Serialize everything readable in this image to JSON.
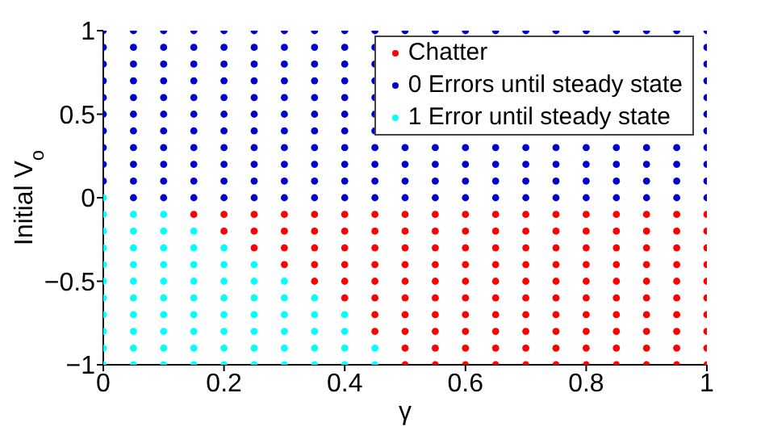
{
  "chart_data": {
    "type": "scatter",
    "xlabel": "γ",
    "ylabel": "Initial V$_{o}$",
    "xlim": [
      0,
      1
    ],
    "xticks": [
      0,
      0.2,
      0.4,
      0.6,
      0.8,
      1
    ],
    "ylim": [
      -1,
      1
    ],
    "yticks": [
      -1,
      -0.5,
      0,
      0.5,
      1
    ],
    "grid": false,
    "legend": "top right",
    "marker": "circle",
    "series": [
      {
        "name": "Chatter",
        "color": "#ff0000",
        "x": [
          0.15,
          0.2,
          0.25,
          0.3,
          0.35,
          0.4,
          0.45,
          0.5,
          0.55,
          0.6,
          0.65,
          0.7,
          0.75,
          0.8,
          0.85,
          0.9,
          0.95,
          1,
          0.2,
          0.25,
          0.3,
          0.35,
          0.4,
          0.45,
          0.5,
          0.55,
          0.6,
          0.65,
          0.7,
          0.75,
          0.8,
          0.85,
          0.9,
          0.95,
          1,
          0.25,
          0.3,
          0.35,
          0.4,
          0.45,
          0.5,
          0.55,
          0.6,
          0.65,
          0.7,
          0.75,
          0.8,
          0.85,
          0.9,
          0.95,
          1,
          0.3,
          0.35,
          0.4,
          0.45,
          0.5,
          0.55,
          0.6,
          0.65,
          0.7,
          0.75,
          0.8,
          0.85,
          0.9,
          0.95,
          1,
          0.35,
          0.4,
          0.45,
          0.5,
          0.55,
          0.6,
          0.65,
          0.7,
          0.75,
          0.8,
          0.85,
          0.9,
          0.95,
          1,
          0.4,
          0.45,
          0.5,
          0.55,
          0.6,
          0.65,
          0.7,
          0.75,
          0.8,
          0.85,
          0.9,
          0.95,
          1,
          0.45,
          0.5,
          0.55,
          0.6,
          0.65,
          0.7,
          0.75,
          0.8,
          0.85,
          0.9,
          0.95,
          1,
          0.45,
          0.5,
          0.55,
          0.6,
          0.65,
          0.7,
          0.75,
          0.8,
          0.85,
          0.9,
          0.95,
          1,
          0.5,
          0.55,
          0.6,
          0.65,
          0.7,
          0.75,
          0.8,
          0.85,
          0.9,
          0.95,
          1,
          0.5,
          0.55,
          0.6,
          0.65,
          0.7,
          0.75,
          0.8,
          0.85,
          0.9,
          0.95,
          1
        ],
        "values": [
          -0.1,
          -0.1,
          -0.1,
          -0.1,
          -0.1,
          -0.1,
          -0.1,
          -0.1,
          -0.1,
          -0.1,
          -0.1,
          -0.1,
          -0.1,
          -0.1,
          -0.1,
          -0.1,
          -0.1,
          -0.1,
          -0.2,
          -0.2,
          -0.2,
          -0.2,
          -0.2,
          -0.2,
          -0.2,
          -0.2,
          -0.2,
          -0.2,
          -0.2,
          -0.2,
          -0.2,
          -0.2,
          -0.2,
          -0.2,
          -0.2,
          -0.3,
          -0.3,
          -0.3,
          -0.3,
          -0.3,
          -0.3,
          -0.3,
          -0.3,
          -0.3,
          -0.3,
          -0.3,
          -0.3,
          -0.3,
          -0.3,
          -0.3,
          -0.3,
          -0.4,
          -0.4,
          -0.4,
          -0.4,
          -0.4,
          -0.4,
          -0.4,
          -0.4,
          -0.4,
          -0.4,
          -0.4,
          -0.4,
          -0.4,
          -0.4,
          -0.4,
          -0.5,
          -0.5,
          -0.5,
          -0.5,
          -0.5,
          -0.5,
          -0.5,
          -0.5,
          -0.5,
          -0.5,
          -0.5,
          -0.5,
          -0.5,
          -0.5,
          -0.6,
          -0.6,
          -0.6,
          -0.6,
          -0.6,
          -0.6,
          -0.6,
          -0.6,
          -0.6,
          -0.6,
          -0.6,
          -0.6,
          -0.6,
          -0.7,
          -0.7,
          -0.7,
          -0.7,
          -0.7,
          -0.7,
          -0.7,
          -0.7,
          -0.7,
          -0.7,
          -0.7,
          -0.7,
          -0.8,
          -0.8,
          -0.8,
          -0.8,
          -0.8,
          -0.8,
          -0.8,
          -0.8,
          -0.8,
          -0.8,
          -0.8,
          -0.8,
          -0.9,
          -0.9,
          -0.9,
          -0.9,
          -0.9,
          -0.9,
          -0.9,
          -0.9,
          -0.9,
          -0.9,
          -0.9,
          -1,
          -1,
          -1,
          -1,
          -1,
          -1,
          -1,
          -1,
          -1,
          -1,
          -1
        ]
      },
      {
        "name": "0 Errors until steady state",
        "color": "#0000cc",
        "x": [
          0.05,
          0.1,
          0.15,
          0.2,
          0.25,
          0.3,
          0.35,
          0.4,
          0.45,
          0.5,
          0.55,
          0.6,
          0.65,
          0.7,
          0.75,
          0.8,
          0.85,
          0.9,
          0.95,
          1,
          0,
          0.05,
          0.1,
          0.15,
          0.2,
          0.25,
          0.3,
          0.35,
          0.4,
          0.45,
          0.5,
          0.55,
          0.6,
          0.65,
          0.7,
          0.75,
          0.8,
          0.85,
          0.9,
          0.95,
          1,
          0,
          0.05,
          0.1,
          0.15,
          0.2,
          0.25,
          0.3,
          0.35,
          0.4,
          0.45,
          0.5,
          0.55,
          0.6,
          0.65,
          0.7,
          0.75,
          0.8,
          0.85,
          0.9,
          0.95,
          1,
          0,
          0.05,
          0.1,
          0.15,
          0.2,
          0.25,
          0.3,
          0.35,
          0.4,
          0.45,
          0.5,
          0.55,
          0.6,
          0.65,
          0.7,
          0.75,
          0.8,
          0.85,
          0.9,
          0.95,
          1,
          0,
          0.05,
          0.1,
          0.15,
          0.2,
          0.25,
          0.3,
          0.35,
          0.4,
          0.45,
          0.5,
          0.55,
          0.6,
          0.65,
          0.7,
          0.75,
          0.8,
          0.85,
          0.9,
          0.95,
          1,
          0,
          0.05,
          0.1,
          0.15,
          0.2,
          0.25,
          0.3,
          0.35,
          0.4,
          0.45,
          0.5,
          0.55,
          0.6,
          0.65,
          0.7,
          0.75,
          0.8,
          0.85,
          0.9,
          0.95,
          1,
          0,
          0.05,
          0.1,
          0.15,
          0.2,
          0.25,
          0.3,
          0.35,
          0.4,
          0.45,
          0.5,
          0.55,
          0.6,
          0.65,
          0.7,
          0.75,
          0.8,
          0.85,
          0.9,
          0.95,
          1,
          0,
          0.05,
          0.1,
          0.15,
          0.2,
          0.25,
          0.3,
          0.35,
          0.4,
          0.45,
          0.5,
          0.55,
          0.6,
          0.65,
          0.7,
          0.75,
          0.8,
          0.85,
          0.9,
          0.95,
          1,
          0,
          0.05,
          0.1,
          0.15,
          0.2,
          0.25,
          0.3,
          0.35,
          0.4,
          0.45,
          0.5,
          0.55,
          0.6,
          0.65,
          0.7,
          0.75,
          0.8,
          0.85,
          0.9,
          0.95,
          1,
          0,
          0.05,
          0.1,
          0.15,
          0.2,
          0.25,
          0.3,
          0.35,
          0.4,
          0.45,
          0.5,
          0.55,
          0.6,
          0.65,
          0.7,
          0.75,
          0.8,
          0.85,
          0.9,
          0.95,
          1,
          0,
          0.05,
          0.1,
          0.15,
          0.2,
          0.25,
          0.3,
          0.35,
          0.4,
          0.45,
          0.5,
          0.55,
          0.6,
          0.65,
          0.7,
          0.75,
          0.8,
          0.85,
          0.9,
          0.95,
          1
        ],
        "values": [
          0,
          0,
          0,
          0,
          0,
          0,
          0,
          0,
          0,
          0,
          0,
          0,
          0,
          0,
          0,
          0,
          0,
          0,
          0,
          0,
          0.1,
          0.1,
          0.1,
          0.1,
          0.1,
          0.1,
          0.1,
          0.1,
          0.1,
          0.1,
          0.1,
          0.1,
          0.1,
          0.1,
          0.1,
          0.1,
          0.1,
          0.1,
          0.1,
          0.1,
          0.1,
          0.2,
          0.2,
          0.2,
          0.2,
          0.2,
          0.2,
          0.2,
          0.2,
          0.2,
          0.2,
          0.2,
          0.2,
          0.2,
          0.2,
          0.2,
          0.2,
          0.2,
          0.2,
          0.2,
          0.2,
          0.2,
          0.3,
          0.3,
          0.3,
          0.3,
          0.3,
          0.3,
          0.3,
          0.3,
          0.3,
          0.3,
          0.3,
          0.3,
          0.3,
          0.3,
          0.3,
          0.3,
          0.3,
          0.3,
          0.3,
          0.3,
          0.3,
          0.4,
          0.4,
          0.4,
          0.4,
          0.4,
          0.4,
          0.4,
          0.4,
          0.4,
          0.4,
          null,
          null,
          null,
          null,
          null,
          null,
          null,
          null,
          null,
          null,
          0.4,
          0.5,
          0.5,
          0.5,
          0.5,
          0.5,
          0.5,
          0.5,
          0.5,
          0.5,
          0.5,
          null,
          null,
          null,
          null,
          null,
          null,
          null,
          null,
          null,
          null,
          0.5,
          0.6,
          0.6,
          0.6,
          0.6,
          0.6,
          0.6,
          0.6,
          0.6,
          0.6,
          0.6,
          null,
          null,
          null,
          null,
          null,
          null,
          null,
          null,
          null,
          null,
          0.6,
          0.7,
          0.7,
          0.7,
          0.7,
          0.7,
          0.7,
          0.7,
          0.7,
          0.7,
          0.7,
          null,
          null,
          null,
          null,
          null,
          null,
          null,
          null,
          null,
          null,
          0.7,
          0.8,
          0.8,
          0.8,
          0.8,
          0.8,
          0.8,
          0.8,
          0.8,
          0.8,
          0.8,
          null,
          null,
          null,
          null,
          null,
          null,
          null,
          null,
          null,
          null,
          0.8,
          0.9,
          0.9,
          0.9,
          0.9,
          0.9,
          0.9,
          0.9,
          0.9,
          0.9,
          0.9,
          null,
          null,
          null,
          null,
          null,
          null,
          null,
          null,
          null,
          null,
          0.9,
          1,
          1,
          1,
          1,
          1,
          1,
          1,
          1,
          1,
          1,
          1,
          1,
          1,
          1,
          1,
          1,
          1,
          1,
          1,
          1,
          1
        ]
      },
      {
        "name": "1 Error until steady state",
        "color": "#00ffff",
        "x": [
          0,
          0,
          0.05,
          0.1,
          0,
          0.05,
          0.1,
          0.15,
          0,
          0.05,
          0.1,
          0.15,
          0.2,
          0,
          0.05,
          0.1,
          0.15,
          0.2,
          0.25,
          0,
          0.05,
          0.1,
          0.15,
          0.2,
          0.25,
          0.3,
          0,
          0.05,
          0.1,
          0.15,
          0.2,
          0.25,
          0.3,
          0.35,
          0,
          0.05,
          0.1,
          0.15,
          0.2,
          0.25,
          0.3,
          0.35,
          0.4,
          0,
          0.05,
          0.1,
          0.15,
          0.2,
          0.25,
          0.3,
          0.35,
          0.4,
          0,
          0.05,
          0.1,
          0.15,
          0.2,
          0.25,
          0.3,
          0.35,
          0.4,
          0.45,
          0,
          0.05,
          0.1,
          0.15,
          0.2,
          0.25,
          0.3,
          0.35,
          0.4,
          0.45
        ],
        "values": [
          0,
          -0.1,
          -0.1,
          -0.1,
          -0.2,
          -0.2,
          -0.2,
          -0.2,
          -0.3,
          -0.3,
          -0.3,
          -0.3,
          -0.3,
          -0.4,
          -0.4,
          -0.4,
          -0.4,
          -0.4,
          -0.4,
          -0.5,
          -0.5,
          -0.5,
          -0.5,
          -0.5,
          -0.5,
          -0.5,
          -0.6,
          -0.6,
          -0.6,
          -0.6,
          -0.6,
          -0.6,
          -0.6,
          -0.6,
          -0.7,
          -0.7,
          -0.7,
          -0.7,
          -0.7,
          -0.7,
          -0.7,
          -0.7,
          -0.7,
          -0.8,
          -0.8,
          -0.8,
          -0.8,
          -0.8,
          -0.8,
          -0.8,
          -0.8,
          -0.8,
          -0.9,
          -0.9,
          -0.9,
          -0.9,
          -0.9,
          -0.9,
          -0.9,
          -0.9,
          -0.9,
          -0.9,
          -1,
          -1,
          -1,
          -1,
          -1,
          -1,
          -1,
          -1,
          -1,
          -1
        ]
      }
    ]
  }
}
